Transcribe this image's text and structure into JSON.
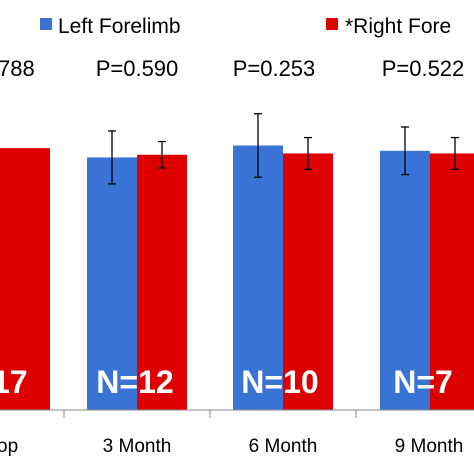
{
  "chart_data": {
    "type": "bar",
    "categories": [
      "op",
      "3 Month",
      "6 Month",
      "9 Month"
    ],
    "series": [
      {
        "name": "Left Forelimb",
        "color": "#3a73d6",
        "values": [
          null,
          95.5,
          100,
          98
        ],
        "error": [
          null,
          10,
          12,
          9
        ]
      },
      {
        "name": "*Right Fore",
        "color": "#dd0000",
        "values": [
          99,
          96.5,
          97,
          97
        ],
        "error": [
          null,
          5,
          6,
          6
        ]
      }
    ],
    "pvalues": [
      "788",
      "P=0.590",
      "P=0.253",
      "P=0.522"
    ],
    "n_labels": [
      "17",
      "N=12",
      "N=10",
      "N=7"
    ],
    "ylim": [
      0,
      120
    ],
    "legend": {
      "position": "top"
    },
    "grid": false
  }
}
